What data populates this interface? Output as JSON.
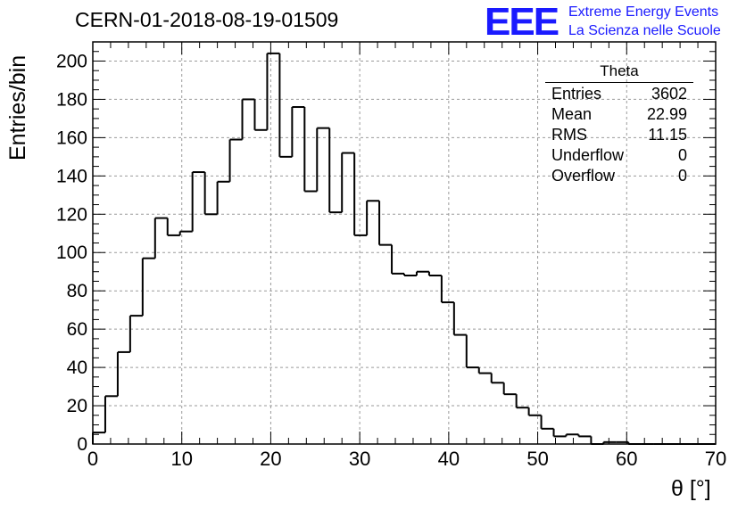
{
  "header": {
    "title": "CERN-01-2018-08-19-01509",
    "logo_text": "EEE",
    "logo_line1": "Extreme Energy Events",
    "logo_line2": "La Scienza nelle Scuole",
    "logo_color": "#1a1aff"
  },
  "stats_box": {
    "title": "Theta",
    "rows": [
      {
        "label": "Entries",
        "value": "3602"
      },
      {
        "label": "Mean",
        "value": "22.99"
      },
      {
        "label": "RMS",
        "value": "11.15"
      },
      {
        "label": "Underflow",
        "value": "0"
      },
      {
        "label": "Overflow",
        "value": "0"
      }
    ]
  },
  "chart_data": {
    "type": "bar",
    "histogram": true,
    "xlabel": "θ [°]",
    "ylabel": "Entries/bin",
    "xlim": [
      0,
      70
    ],
    "ylim": [
      0,
      210
    ],
    "bin_width": 1.4,
    "xticks": [
      0,
      10,
      20,
      30,
      40,
      50,
      60,
      70
    ],
    "yticks": [
      0,
      20,
      40,
      60,
      80,
      100,
      120,
      140,
      160,
      180,
      200
    ],
    "grid": true,
    "values": [
      6,
      25,
      48,
      67,
      97,
      118,
      109,
      111,
      142,
      120,
      137,
      159,
      180,
      164,
      204,
      150,
      176,
      132,
      165,
      121,
      152,
      109,
      127,
      104,
      89,
      88,
      90,
      88,
      74,
      57,
      40,
      37,
      32,
      26,
      19,
      15,
      8,
      4,
      5,
      4,
      0,
      1,
      1,
      0,
      0,
      0,
      0,
      0,
      0,
      0
    ]
  }
}
